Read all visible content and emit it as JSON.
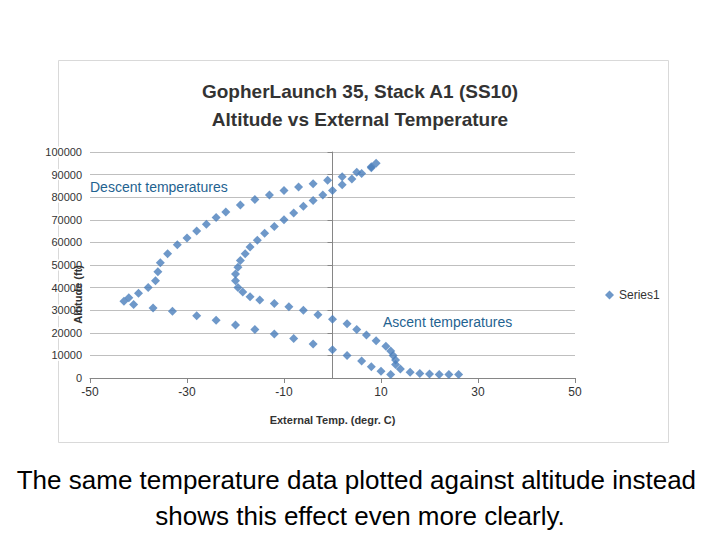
{
  "chart_data": {
    "type": "scatter",
    "title": "GopherLaunch 35, Stack A1 (SS10)\nAltitude vs External Temperature",
    "caption": "The same temperature data plotted against altitude instead shows this effect even more clearly.",
    "annotations": [
      "Descent temperatures",
      "Ascent temperatures"
    ],
    "x_label": "External Temp. (degr. C)",
    "y_label": "Altitude (ft)",
    "series": [
      {
        "name": "Series1",
        "color": "#4a7ebb",
        "marker": "diamond",
        "x": [
          26,
          24,
          22,
          20,
          18,
          16,
          14,
          13,
          13,
          12.5,
          12,
          11,
          9,
          7,
          5,
          3,
          0,
          -3,
          -6,
          -9,
          -12,
          -15,
          -17,
          -18.5,
          -19.5,
          -20,
          -20,
          -19.5,
          -19,
          -18,
          -17,
          -15.5,
          -14,
          -12,
          -10,
          -8,
          -6,
          -4,
          -2,
          0,
          2,
          4,
          6,
          8,
          9,
          8,
          5,
          2,
          -1,
          -4,
          -7,
          -10,
          -13,
          -16,
          -19,
          -22,
          -24,
          -26,
          -28,
          -30,
          -32,
          -34,
          -35.5,
          -36,
          -36.5,
          -38,
          -40,
          -42,
          -43,
          -41,
          -37,
          -33,
          -28,
          -24,
          -20,
          -16,
          -12,
          -8,
          -4,
          0,
          3,
          6,
          8,
          10,
          12
        ],
        "values": [
          1500,
          1500,
          1600,
          1800,
          2000,
          2500,
          4000,
          6000,
          8000,
          10000,
          12000,
          14000,
          16500,
          19000,
          21500,
          24000,
          26000,
          28000,
          30000,
          31500,
          33000,
          34500,
          36000,
          38000,
          40000,
          43000,
          46000,
          49000,
          52000,
          55000,
          58000,
          61000,
          64000,
          67000,
          70000,
          73000,
          76000,
          78500,
          81000,
          83000,
          85500,
          88000,
          90500,
          93000,
          95000,
          93500,
          91000,
          89000,
          87500,
          86000,
          84500,
          83000,
          81000,
          79000,
          76500,
          73500,
          71000,
          68000,
          65000,
          62000,
          59000,
          55000,
          51000,
          47000,
          43000,
          40000,
          37500,
          35500,
          34000,
          32500,
          31000,
          29500,
          27500,
          25500,
          23500,
          21500,
          19500,
          17500,
          15000,
          12500,
          10000,
          7500,
          5000,
          3000,
          1500
        ]
      }
    ],
    "xlim": [
      -50,
      50
    ],
    "xticks": [
      -50,
      -30,
      -10,
      10,
      30,
      50
    ],
    "ylim": [
      0,
      100000
    ],
    "yticks": [
      0,
      10000,
      20000,
      30000,
      40000,
      50000,
      60000,
      70000,
      80000,
      90000,
      100000
    ],
    "grid": true,
    "legend": "right"
  }
}
